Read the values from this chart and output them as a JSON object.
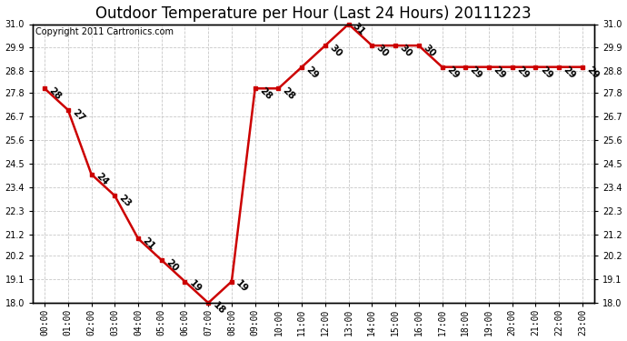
{
  "title": "Outdoor Temperature per Hour (Last 24 Hours) 20111223",
  "copyright": "Copyright 2011 Cartronics.com",
  "hours": [
    "00:00",
    "01:00",
    "02:00",
    "03:00",
    "04:00",
    "05:00",
    "06:00",
    "07:00",
    "08:00",
    "09:00",
    "10:00",
    "11:00",
    "12:00",
    "13:00",
    "14:00",
    "15:00",
    "16:00",
    "17:00",
    "18:00",
    "19:00",
    "20:00",
    "21:00",
    "22:00",
    "23:00"
  ],
  "temps": [
    28,
    27,
    24,
    23,
    21,
    20,
    19,
    18,
    19,
    28,
    28,
    29,
    30,
    31,
    30,
    30,
    30,
    29,
    29,
    29,
    29,
    29,
    29,
    29
  ],
  "line_color": "#cc0000",
  "marker_color": "#cc0000",
  "bg_color": "#ffffff",
  "grid_color": "#c8c8c8",
  "ylim_min": 18.0,
  "ylim_max": 31.0,
  "ytick_values": [
    18.0,
    19.1,
    20.2,
    21.2,
    22.3,
    23.4,
    24.5,
    25.6,
    26.7,
    27.8,
    28.8,
    29.9,
    31.0
  ],
  "ytick_labels": [
    "18.0",
    "19.1",
    "20.2",
    "21.2",
    "22.3",
    "23.4",
    "24.5",
    "25.6",
    "26.7",
    "27.8",
    "28.8",
    "29.9",
    "31.0"
  ],
  "title_fontsize": 12,
  "label_fontsize": 7.5,
  "tick_fontsize": 7,
  "copyright_fontsize": 7
}
